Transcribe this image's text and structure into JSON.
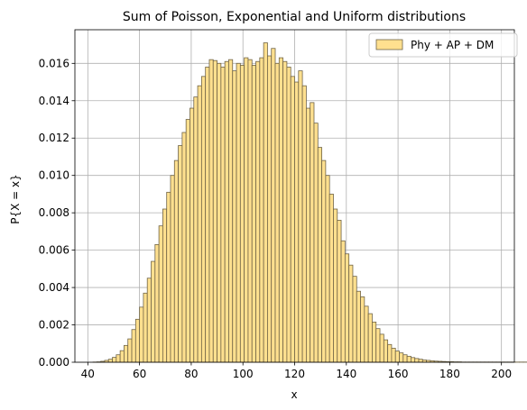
{
  "chart_data": {
    "type": "bar",
    "title": "Sum of Poisson, Exponential and Uniform distributions",
    "xlabel": "x",
    "ylabel": "P{X = x}",
    "xlim": [
      35,
      205
    ],
    "ylim": [
      0,
      0.0178
    ],
    "xticks": [
      40,
      60,
      80,
      100,
      120,
      140,
      160,
      180,
      200
    ],
    "yticks": [
      0.0,
      0.002,
      0.004,
      0.006,
      0.008,
      0.01,
      0.012,
      0.014,
      0.016
    ],
    "ytick_format_decimals": 3,
    "grid": true,
    "legend_position": "top-right",
    "bar_color": "#ffe08f",
    "bar_edge_color": "#6f6446",
    "series": [
      {
        "name": "Phy + AP + DM",
        "bin_start": 42,
        "bin_width": 1.5,
        "values": [
          1e-05,
          2e-05,
          5e-05,
          0.0001,
          0.00016,
          0.00026,
          0.0004,
          0.00062,
          0.0009,
          0.00125,
          0.00175,
          0.0023,
          0.00295,
          0.0037,
          0.0045,
          0.0054,
          0.0063,
          0.0073,
          0.0082,
          0.0091,
          0.01,
          0.0108,
          0.0116,
          0.0123,
          0.013,
          0.0136,
          0.0142,
          0.0148,
          0.0153,
          0.0158,
          0.0162,
          0.01615,
          0.016,
          0.0158,
          0.0161,
          0.0162,
          0.0156,
          0.016,
          0.0159,
          0.0163,
          0.0162,
          0.0159,
          0.0161,
          0.0163,
          0.0171,
          0.0164,
          0.0168,
          0.016,
          0.0163,
          0.0161,
          0.0158,
          0.0153,
          0.015,
          0.0156,
          0.0148,
          0.0136,
          0.0139,
          0.0128,
          0.0115,
          0.0108,
          0.01,
          0.009,
          0.0082,
          0.0076,
          0.0065,
          0.0058,
          0.0052,
          0.0046,
          0.0038,
          0.0035,
          0.003,
          0.0026,
          0.00215,
          0.0018,
          0.0015,
          0.0012,
          0.00095,
          0.00075,
          0.0006,
          0.0005,
          0.0004,
          0.00032,
          0.00025,
          0.0002,
          0.00016,
          0.00012,
          0.0001,
          8e-05,
          6e-05,
          5e-05,
          4e-05,
          3e-05,
          3e-05,
          2e-05,
          2e-05,
          1e-05,
          1e-05,
          1e-05,
          1e-05,
          1e-05,
          1e-05,
          1e-05,
          1e-05,
          1e-05,
          1e-05,
          1e-05,
          1e-05,
          1e-05,
          1e-05,
          1e-05,
          1e-05,
          1e-05,
          1e-05
        ]
      }
    ]
  }
}
